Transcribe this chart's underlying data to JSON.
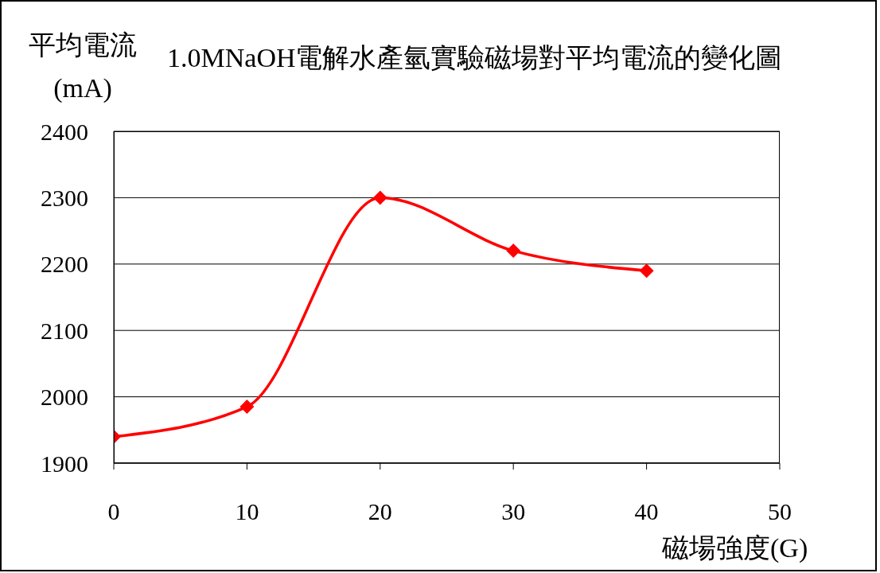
{
  "chart_data": {
    "type": "line",
    "title": "1.0MNaOH電解水產氫實驗磁場對平均電流的變化圖",
    "ylabel": "平均電流\n(mA)",
    "xlabel": "磁場強度(G)",
    "x": [
      0,
      10,
      20,
      30,
      40
    ],
    "series": [
      {
        "color": "#ff0000",
        "values": [
          1940,
          1985,
          2300,
          2220,
          2190
        ]
      }
    ],
    "xlim": [
      0,
      50
    ],
    "xticks": [
      0,
      10,
      20,
      30,
      40,
      50
    ],
    "ylim": [
      1900,
      2400
    ],
    "yticks": [
      1900,
      2000,
      2100,
      2200,
      2300,
      2400
    ],
    "grid": "y",
    "marker": "diamond",
    "line_style": "solid"
  }
}
